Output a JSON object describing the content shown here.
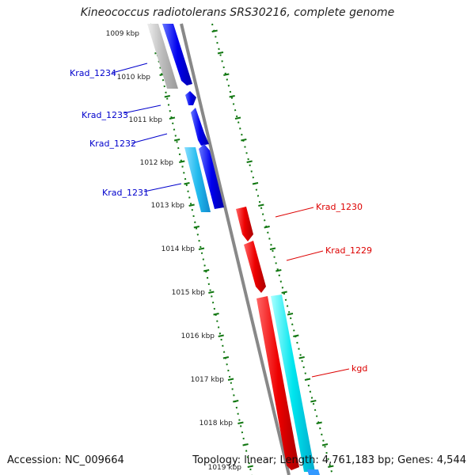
{
  "title": "Kineococcus radiotolerans SRS30216, complete genome",
  "footer": {
    "accession": "Accession: NC_009664",
    "topology": "Topology: linear; Length: 4,761,183 bp; Genes: 4,544"
  },
  "colors": {
    "forward_gene": "#0000ee",
    "reverse_gene": "#ee0000",
    "cds_cyan": "#00e5ee",
    "cds_light_blue": "#22bbee",
    "gray_feature": "#bbbbbb",
    "backbone": "#888888",
    "tick": "#117711"
  },
  "kbp_ticks": [
    "1009 kbp",
    "1010 kbp",
    "1011 kbp",
    "1012 kbp",
    "1013 kbp",
    "1014 kbp",
    "1015 kbp",
    "1016 kbp",
    "1017 kbp",
    "1018 kbp",
    "1019 kbp"
  ],
  "genes_left": [
    "Krad_1234",
    "Krad_1233",
    "Krad_1232",
    "Krad_1231"
  ],
  "genes_right": [
    "Krad_1230",
    "Krad_1229",
    "kgd"
  ]
}
